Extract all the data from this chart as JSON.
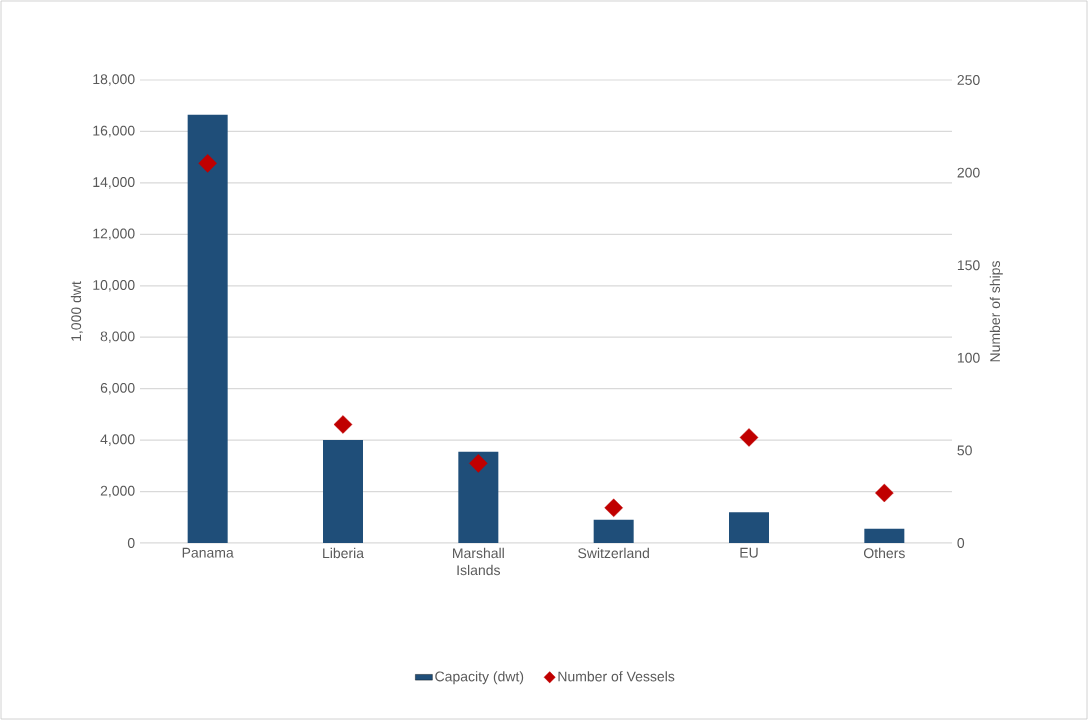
{
  "chart_data": {
    "type": "bar",
    "categories": [
      "Panama",
      "Liberia",
      "Marshall Islands",
      "Switzerland",
      "EU",
      "Others"
    ],
    "series": [
      {
        "name": "Capacity (dwt)",
        "color": "#1f4e79",
        "values": [
          16650,
          4000,
          3550,
          900,
          1200,
          550
        ]
      },
      {
        "name": "Number of Vessels",
        "type": "scatter",
        "axis": "y2",
        "marker": "diamond",
        "color": "#c00000",
        "values": [
          205,
          64,
          43,
          19,
          57,
          27
        ]
      }
    ],
    "ylabel": "1,000 dwt",
    "y2label": "Number of ships",
    "ylim": [
      0,
      18000
    ],
    "yticks": [
      0,
      {
        "value": 2000,
        "label": "2,000"
      },
      {
        "value": 4000,
        "label": "4,000"
      },
      {
        "value": 6000,
        "label": "6,000"
      },
      {
        "value": 8000,
        "label": "8,000"
      },
      {
        "value": 10000,
        "label": "10,000"
      },
      {
        "value": 12000,
        "label": "12,000"
      },
      {
        "value": 14000,
        "label": "14,000"
      },
      {
        "value": 16000,
        "label": "16,000"
      },
      {
        "value": 18000,
        "label": "18,000"
      }
    ],
    "y2lim": [
      0,
      250
    ],
    "y2ticks": [
      0,
      50,
      100,
      150,
      200,
      250
    ],
    "grid": "y",
    "legend": "bottom"
  }
}
